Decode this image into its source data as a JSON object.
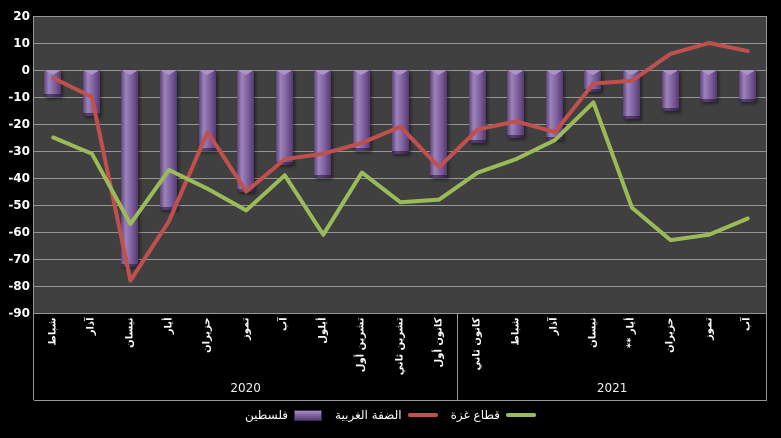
{
  "chart_data": {
    "type": "combo",
    "categories": [
      "شباط",
      "آذار",
      "نيسان",
      "أيار",
      "حزيران",
      "تموز",
      "آب",
      "أيلول",
      "تشرين أول",
      "تشرين ثاني",
      "كانون أول",
      "كانون ثاني",
      "شباط",
      "آذار",
      "نيسان",
      "أيار **",
      "حزيران",
      "تموز",
      "آب"
    ],
    "year_groups": [
      {
        "label": "2020",
        "count": 11
      },
      {
        "label": "2021",
        "count": 8
      }
    ],
    "series": [
      {
        "id": "palestine",
        "name": "فلسطين",
        "type": "bar",
        "color": "#8064a2",
        "values": [
          -10,
          -17,
          -73,
          -52,
          -30,
          -45,
          -35,
          -40,
          -30,
          -31,
          -40,
          -27,
          -25,
          -26,
          -8,
          -18,
          -15,
          -12,
          -12
        ]
      },
      {
        "id": "west-bank",
        "name": "الضفة الغربية",
        "type": "line",
        "color": "#c0504d",
        "values": [
          -3,
          -10,
          -78,
          -56,
          -23,
          -45,
          -33,
          -31,
          -27,
          -21,
          -36,
          -22,
          -19,
          -23,
          -5,
          -4,
          6,
          10,
          7
        ]
      },
      {
        "id": "gaza-strip",
        "name": "قطاع غزة",
        "type": "line",
        "color": "#9bbb59",
        "values": [
          -25,
          -31,
          -57,
          -37,
          -44,
          -52,
          -39,
          -61,
          -38,
          -49,
          -48,
          -38,
          -33,
          -26,
          -12,
          -51,
          -63,
          -61,
          -55
        ]
      }
    ],
    "ylim": [
      -90,
      20
    ],
    "yticks": [
      20,
      10,
      0,
      -10,
      -20,
      -30,
      -40,
      -50,
      -60,
      -70,
      -80,
      -90
    ],
    "grid": "horizontal",
    "legend_position": "bottom"
  },
  "colors": {
    "page_bg": "#000000",
    "plot_bg": "#404040",
    "gridline": "#969696",
    "text": "#ffffff",
    "bar_purple": "#8064a2",
    "line_red": "#c0504d",
    "line_green": "#9bbb59"
  }
}
